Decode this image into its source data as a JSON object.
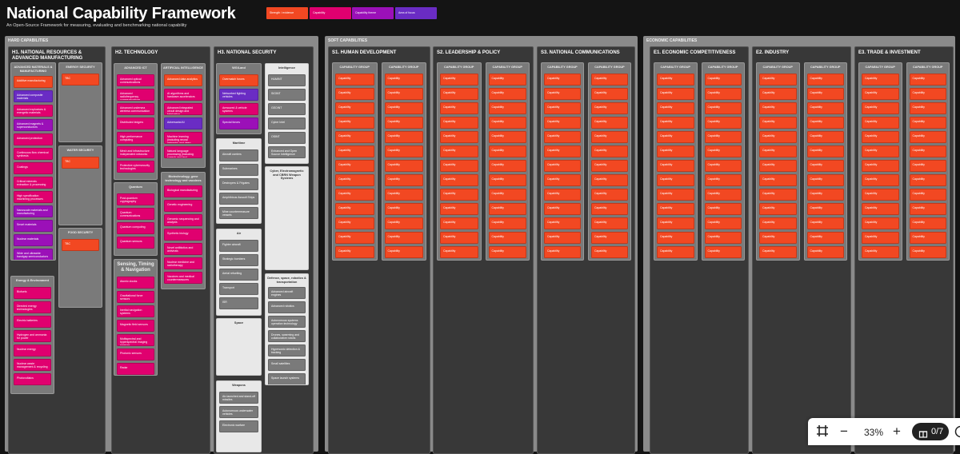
{
  "header": {
    "title": "National Capability Framework",
    "subtitle": "An Open-Source Framework for measuring, evaluating and benchmarking national capability"
  },
  "legend": [
    {
      "label": "Strength / evidence",
      "color": "#f24822"
    },
    {
      "label": "Capability",
      "color": "#e0006f"
    },
    {
      "label": "Capability theme",
      "color": "#9b10b8"
    },
    {
      "label": "Area of focus",
      "color": "#6a2cc4"
    }
  ],
  "panels": [
    {
      "id": "hard",
      "label": "HARD CAPABILITIES"
    },
    {
      "id": "soft",
      "label": "SOFT CAPABILITIES"
    },
    {
      "id": "econ",
      "label": "ECONOMIC CAPABILITIES"
    }
  ],
  "columns": [
    {
      "id": "h1",
      "title": "H1. NATIONAL RESOURCES & ADVANCED MANUFACTURING"
    },
    {
      "id": "h2",
      "title": "H2. TECHNOLOGY"
    },
    {
      "id": "h3",
      "title": "H3. NATIONAL SECURITY"
    },
    {
      "id": "s1",
      "title": "S1. HUMAN DEVELOPMENT"
    },
    {
      "id": "s2",
      "title": "S2. LEADERSHIP & POLICY"
    },
    {
      "id": "s3",
      "title": "S3. NATIONAL COMMUNICATIONS"
    },
    {
      "id": "e1",
      "title": "E1. ECONOMIC COMPETITIVENESS"
    },
    {
      "id": "e2",
      "title": "E2. INDUSTRY"
    },
    {
      "id": "e3",
      "title": "E3. TRADE & INVESTMENT"
    }
  ],
  "groups": [
    {
      "id": "h1_adv",
      "title": "ADVANCED MATERIALS & MANUFACTURING",
      "style": "gray",
      "cards": [
        {
          "label": "Additive manufacturing",
          "color": "orange"
        },
        {
          "label": "Advanced composite materials",
          "color": "violet"
        },
        {
          "label": "Advanced explosives & energetic materials",
          "color": "pink"
        },
        {
          "label": "Advanced magnets & superconductors",
          "color": "purple"
        },
        {
          "label": "Advanced protection",
          "color": "pink"
        },
        {
          "label": "Continuous flow chemical synthesis",
          "color": "pink"
        },
        {
          "label": "Coatings",
          "color": "pink"
        },
        {
          "label": "Critical minerals extraction & processing",
          "color": "pink"
        },
        {
          "label": "High specification machining processes",
          "color": "pink"
        },
        {
          "label": "Nanoscale materials and manufacturing",
          "color": "purple"
        },
        {
          "label": "Smart materials",
          "color": "purple"
        },
        {
          "label": "Nuclear materials",
          "color": "purple"
        },
        {
          "label": "Wide and ultrawide bandgap semiconductors",
          "color": "purple"
        }
      ]
    },
    {
      "id": "h1_energy",
      "title": "ENERGY SECURITY",
      "style": "gray",
      "cards": [
        {
          "label": "TBC",
          "color": "orange"
        }
      ]
    },
    {
      "id": "h1_water",
      "title": "WATER SECURITY",
      "style": "gray",
      "cards": [
        {
          "label": "TBC",
          "color": "orange"
        }
      ]
    },
    {
      "id": "h1_food",
      "title": "FOOD SECURITY",
      "style": "gray",
      "cards": [
        {
          "label": "TBC",
          "color": "orange"
        }
      ]
    },
    {
      "id": "h1_env",
      "title": "Energy & Environment",
      "style": "gray",
      "cards": [
        {
          "label": "Biofuels",
          "color": "pink"
        },
        {
          "label": "Directed energy technologies",
          "color": "pink"
        },
        {
          "label": "Electric batteries",
          "color": "pink"
        },
        {
          "label": "Hydrogen and ammonia for power",
          "color": "pink"
        },
        {
          "label": "Nuclear energy",
          "color": "pink"
        },
        {
          "label": "Nuclear waste management & recycling",
          "color": "pink"
        },
        {
          "label": "Photovoltaics",
          "color": "pink"
        }
      ]
    },
    {
      "id": "h2_ict",
      "title": "ADVANCED ICT",
      "style": "gray",
      "cards": [
        {
          "label": "Advanced optical communications",
          "color": "pink"
        },
        {
          "label": "Advanced radiofrequency communications",
          "color": "pink"
        },
        {
          "label": "Advanced undersea wireless communication",
          "color": "pink"
        },
        {
          "label": "Distributed ledgers",
          "color": "pink"
        },
        {
          "label": "High performance computing",
          "color": "pink"
        },
        {
          "label": "Mesh and infrastructure independent networks",
          "color": "pink"
        },
        {
          "label": "Protective cybersecurity technologies",
          "color": "pink"
        }
      ]
    },
    {
      "id": "h2_ai",
      "title": "ARTIFICIAL INTELLIGENCE",
      "style": "gray",
      "cards": [
        {
          "label": "Advanced data analytics",
          "color": "orange"
        },
        {
          "label": "AI algorithms and hardware accelerators",
          "color": "pink"
        },
        {
          "label": "Advanced integrated circuit design and fabrication",
          "color": "pink"
        },
        {
          "label": "Adversarial AI",
          "color": "violet"
        },
        {
          "label": "Machine learning (including neural networks and deep learning)",
          "color": "pink"
        },
        {
          "label": "Natural language processing (including speech and text recognition and analysis)",
          "color": "pink"
        }
      ]
    },
    {
      "id": "h2_quantum",
      "title": "Quantum",
      "style": "gray",
      "cards": [
        {
          "label": "Post-quantum cryptography",
          "color": "pink"
        },
        {
          "label": "Quantum communications",
          "color": "pink"
        },
        {
          "label": "Quantum computing",
          "color": "pink"
        },
        {
          "label": "Quantum sensors",
          "color": "pink"
        }
      ]
    },
    {
      "id": "h2_bio",
      "title": "Biotechnology, gene technology and vaccines",
      "style": "gray",
      "cards": [
        {
          "label": "Biological manufacturing",
          "color": "pink"
        },
        {
          "label": "Genetic engineering",
          "color": "pink"
        },
        {
          "label": "Genomic sequencing and analysis",
          "color": "pink"
        },
        {
          "label": "Synthetic biology",
          "color": "pink"
        },
        {
          "label": "Novel antibiotics and antivirals",
          "color": "pink"
        },
        {
          "label": "Nuclear medicine and radiotherapy",
          "color": "pink"
        },
        {
          "label": "Vaccines and medical countermeasures",
          "color": "pink"
        }
      ]
    },
    {
      "id": "h2_sensing",
      "title": "Sensing, Timing & Navigation",
      "style": "gray big",
      "cards": [
        {
          "label": "Atomic clocks",
          "color": "pink"
        },
        {
          "label": "Gravitational force sensors",
          "color": "pink"
        },
        {
          "label": "Inertial navigation systems",
          "color": "pink"
        },
        {
          "label": "Magnetic field sensors",
          "color": "pink"
        },
        {
          "label": "Multispectral and hyperspectral imaging sensors",
          "color": "pink"
        },
        {
          "label": "Photonic sensors",
          "color": "pink"
        },
        {
          "label": "Radar",
          "color": "pink"
        }
      ]
    },
    {
      "id": "h3_land",
      "title": "WG/Land",
      "style": "gray",
      "cards": [
        {
          "label": "Overmatch forces",
          "color": "orange"
        },
        {
          "label": "Networked fighting vehicles",
          "color": "violet"
        },
        {
          "label": "Armoured & vehicle systems",
          "color": "pink"
        },
        {
          "label": "Special forces",
          "color": "purple"
        }
      ]
    },
    {
      "id": "h3_intel",
      "title": "Intelligence",
      "style": "white",
      "cards": [
        {
          "label": "HUMINT",
          "color": "gray"
        },
        {
          "label": "SIGINT",
          "color": "gray"
        },
        {
          "label": "GEOINT",
          "color": "gray"
        },
        {
          "label": "Cyber Intel",
          "color": "gray"
        },
        {
          "label": "OSINT",
          "color": "gray"
        },
        {
          "label": "Enhanced and Open Source Intelligence",
          "color": "gray"
        }
      ]
    },
    {
      "id": "h3_maritime",
      "title": "Maritime",
      "style": "white",
      "cards": [
        {
          "label": "Aircraft carriers",
          "color": "gray"
        },
        {
          "label": "Submarines",
          "color": "gray"
        },
        {
          "label": "Destroyers & Frigates",
          "color": "gray"
        },
        {
          "label": "Amphibious Assault Ships",
          "color": "gray"
        },
        {
          "label": "Mine countermeasure vessels",
          "color": "gray"
        }
      ]
    },
    {
      "id": "h3_cyber",
      "title": "Cyber, Electromagnetic and CBRN Weapon Systems",
      "style": "white",
      "cards": []
    },
    {
      "id": "h3_air",
      "title": "Air",
      "style": "white",
      "cards": [
        {
          "label": "Fighter aircraft",
          "color": "gray"
        },
        {
          "label": "Strategic bombers",
          "color": "gray"
        },
        {
          "label": "Aerial refuelling",
          "color": "gray"
        },
        {
          "label": "Transport",
          "color": "gray"
        },
        {
          "label": "ISR",
          "color": "gray"
        }
      ]
    },
    {
      "id": "h3_space",
      "title": "Space",
      "style": "white",
      "cards": []
    },
    {
      "id": "h3_defence",
      "title": "Defence, space, robotics & transportation",
      "style": "white",
      "cards": [
        {
          "label": "Advanced aircraft engines",
          "color": "gray"
        },
        {
          "label": "Advanced robotics",
          "color": "gray"
        },
        {
          "label": "Autonomous systems operation technology",
          "color": "gray"
        },
        {
          "label": "Drones, swarming and collaborative robots",
          "color": "gray"
        },
        {
          "label": "Hypersonic detection & tracking",
          "color": "gray"
        },
        {
          "label": "Small satellites",
          "color": "gray"
        },
        {
          "label": "Space launch systems",
          "color": "gray"
        }
      ]
    },
    {
      "id": "h3_weapons",
      "title": "Weapons",
      "style": "white",
      "cards": [
        {
          "label": "Air-launched and stand-off missiles",
          "color": "gray"
        },
        {
          "label": "Autonomous underwater vehicles",
          "color": "gray"
        },
        {
          "label": "Electronic warfare",
          "color": "gray"
        }
      ]
    }
  ],
  "soft_template": {
    "group_title": "CAPABILITY GROUP",
    "card_label": "Capability",
    "card_color": "orange",
    "cards_per_group": 13,
    "groups_per_column": 2
  },
  "toolbar": {
    "fit_icon": "fit-screen-icon",
    "zoom_out": "−",
    "zoom_level": "33%",
    "zoom_in": "+",
    "tour_icon": "gift-icon",
    "tour_progress": "0/7",
    "help_icon": "clock-icon"
  }
}
